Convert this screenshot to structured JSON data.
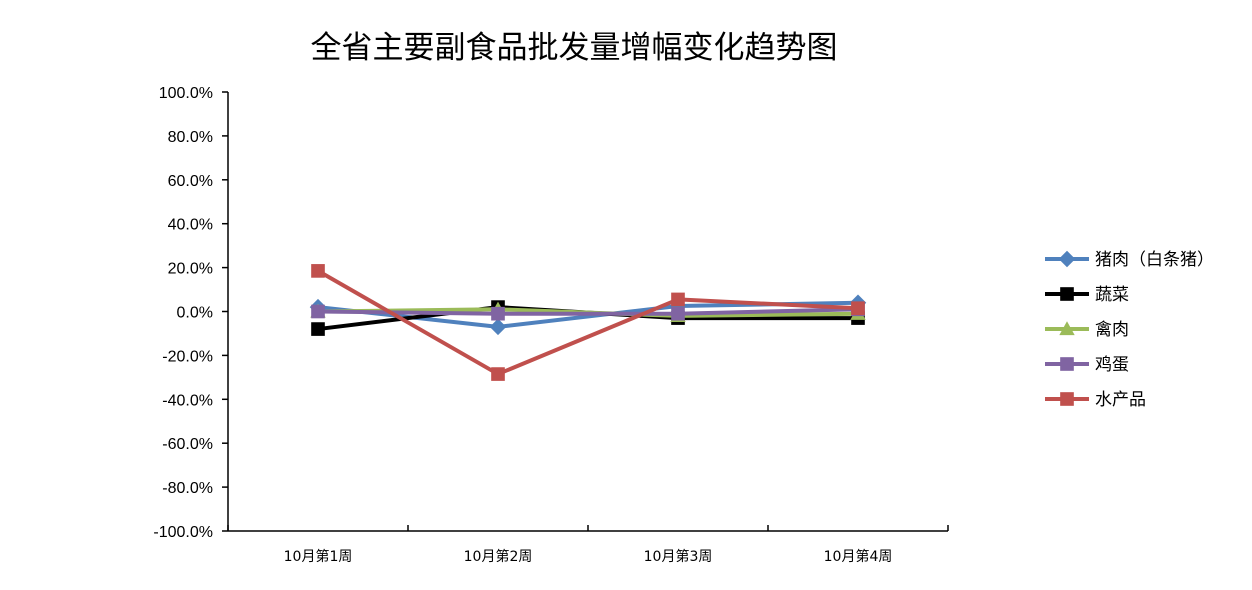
{
  "chart_data": {
    "type": "line",
    "title": "全省主要副食品批发量增幅变化趋势图",
    "xlabel": "",
    "ylabel": "",
    "categories": [
      "10月第1周",
      "10月第2周",
      "10月第3周",
      "10月第4周"
    ],
    "ylim": [
      -100,
      100
    ],
    "ytick_step": 20,
    "ytick_labels": [
      "100.0%",
      "80.0%",
      "60.0%",
      "40.0%",
      "20.0%",
      "0.0%",
      "-20.0%",
      "-40.0%",
      "-60.0%",
      "-80.0%",
      "-100.0%"
    ],
    "grid": false,
    "legend_position": "right",
    "series": [
      {
        "name": "猪肉（白条猪）",
        "color": "#4F81BD",
        "marker": "diamond",
        "values": [
          2.0,
          -7.0,
          2.5,
          4.0
        ]
      },
      {
        "name": "蔬菜",
        "color": "#000000",
        "marker": "square",
        "values": [
          -8.0,
          2.0,
          -3.0,
          -3.0
        ]
      },
      {
        "name": "禽肉",
        "color": "#9BBB59",
        "marker": "triangle",
        "values": [
          0.0,
          1.0,
          -2.0,
          -1.0
        ]
      },
      {
        "name": "鸡蛋",
        "color": "#8064A2",
        "marker": "square",
        "values": [
          0.0,
          -1.0,
          -1.0,
          1.0
        ]
      },
      {
        "name": "水产品",
        "color": "#C0504D",
        "marker": "square",
        "values": [
          18.5,
          -28.5,
          5.5,
          1.5
        ]
      }
    ]
  }
}
